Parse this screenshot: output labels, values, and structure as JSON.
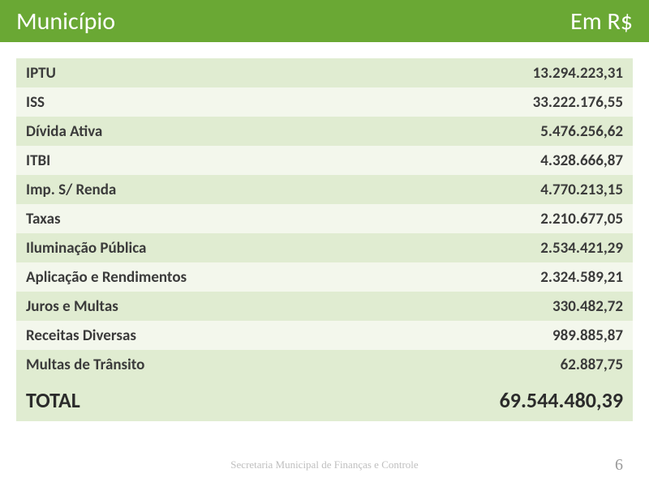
{
  "header": {
    "title_left": "Município",
    "title_right": "Em R$",
    "background_color": "#6aa834",
    "text_color": "#ffffff",
    "fontsize": 30
  },
  "table": {
    "row_odd_bg": "#e0ecd1",
    "row_even_bg": "#f3f7ec",
    "total_bg": "#e0ecd1",
    "text_color": "#3b3b3b",
    "label_fontsize": 19,
    "total_fontsize": 26,
    "rows": [
      {
        "label": "IPTU",
        "value": "13.294.223,31"
      },
      {
        "label": "ISS",
        "value": "33.222.176,55"
      },
      {
        "label": "Dívida Ativa",
        "value": "5.476.256,62"
      },
      {
        "label": "ITBI",
        "value": "4.328.666,87"
      },
      {
        "label": "Imp. S/ Renda",
        "value": "4.770.213,15"
      },
      {
        "label": "Taxas",
        "value": "2.210.677,05"
      },
      {
        "label": "Iluminação Pública",
        "value": "2.534.421,29"
      },
      {
        "label": "Aplicação e Rendimentos",
        "value": "2.324.589,21"
      },
      {
        "label": "Juros e Multas",
        "value": "330.482,72"
      },
      {
        "label": "Receitas Diversas",
        "value": "989.885,87"
      },
      {
        "label": "Multas de Trânsito",
        "value": "62.887,75"
      }
    ],
    "total": {
      "label": "TOTAL",
      "value": "69.544.480,39"
    }
  },
  "footer": {
    "text": "Secretaria Municipal de Finanças e Controle",
    "page_number": "6",
    "text_color": "#bfbfbf",
    "fontsize": 13
  }
}
